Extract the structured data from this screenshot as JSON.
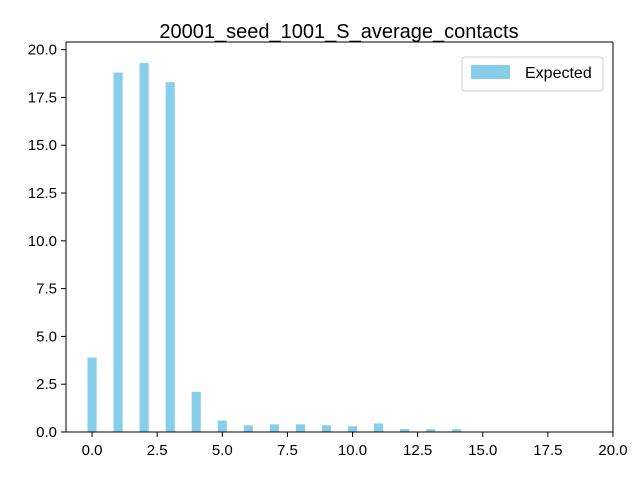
{
  "chart_data": {
    "type": "bar",
    "title": "20001_seed_1001_S_average_contacts",
    "xlabel": "",
    "ylabel": "",
    "bar_width": 0.35,
    "xlim": [
      -1.0,
      20.0
    ],
    "ylim": [
      0,
      20.4
    ],
    "x_ticks": [
      0.0,
      2.5,
      5.0,
      7.5,
      10.0,
      12.5,
      15.0,
      17.5,
      20.0
    ],
    "x_tick_labels": [
      "0.0",
      "2.5",
      "5.0",
      "7.5",
      "10.0",
      "12.5",
      "15.0",
      "17.5",
      "20.0"
    ],
    "y_ticks": [
      0.0,
      2.5,
      5.0,
      7.5,
      10.0,
      12.5,
      15.0,
      17.5,
      20.0
    ],
    "y_tick_labels": [
      "0.0",
      "2.5",
      "5.0",
      "7.5",
      "10.0",
      "12.5",
      "15.0",
      "17.5",
      "20.0"
    ],
    "grid": false,
    "legend_position": "top-right",
    "series": [
      {
        "name": "Expected",
        "color": "#87ceeb",
        "x": [
          0,
          1,
          2,
          3,
          4,
          5,
          6,
          7,
          8,
          9,
          10,
          11,
          12,
          13,
          14
        ],
        "values": [
          3.9,
          18.8,
          19.3,
          18.3,
          2.1,
          0.6,
          0.35,
          0.4,
          0.4,
          0.35,
          0.3,
          0.45,
          0.15,
          0.15,
          0.15
        ]
      }
    ]
  }
}
